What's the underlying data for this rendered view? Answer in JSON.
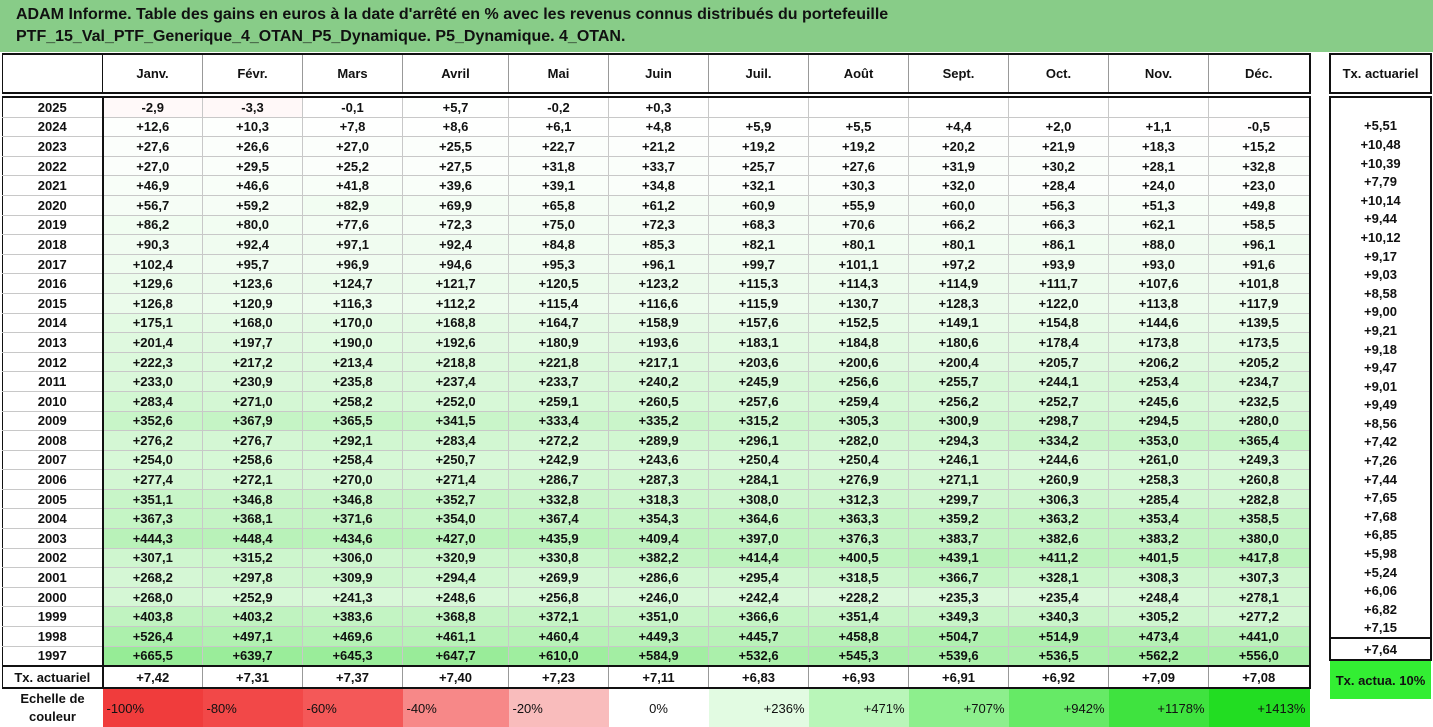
{
  "title": {
    "line1": "ADAM Informe. Table des gains en euros à la date d'arrêté en % avec les revenus connus distribués du portefeuille",
    "line2": "PTF_15_Val_PTF_Generique_4_OTAN_P5_Dynamique. P5_Dynamique. 4_OTAN."
  },
  "months": [
    "Janv.",
    "Févr.",
    "Mars",
    "Avril",
    "Mai",
    "Juin",
    "Juil.",
    "Août",
    "Sept.",
    "Oct.",
    "Nov.",
    "Déc."
  ],
  "side_header": "Tx. actuariel",
  "rows": [
    {
      "year": "2025",
      "values": [
        "-2,9",
        "-3,3",
        "-0,1",
        "+5,7",
        "-0,2",
        "+0,3",
        "",
        "",
        "",
        "",
        "",
        ""
      ],
      "rate": ""
    },
    {
      "year": "2024",
      "values": [
        "+12,6",
        "+10,3",
        "+7,8",
        "+8,6",
        "+6,1",
        "+4,8",
        "+5,9",
        "+5,5",
        "+4,4",
        "+2,0",
        "+1,1",
        "-0,5"
      ],
      "rate": "+5,51"
    },
    {
      "year": "2023",
      "values": [
        "+27,6",
        "+26,6",
        "+27,0",
        "+25,5",
        "+22,7",
        "+21,2",
        "+19,2",
        "+19,2",
        "+20,2",
        "+21,9",
        "+18,3",
        "+15,2"
      ],
      "rate": "+10,48"
    },
    {
      "year": "2022",
      "values": [
        "+27,0",
        "+29,5",
        "+25,2",
        "+27,5",
        "+31,8",
        "+33,7",
        "+25,7",
        "+27,6",
        "+31,9",
        "+30,2",
        "+28,1",
        "+32,8"
      ],
      "rate": "+10,39"
    },
    {
      "year": "2021",
      "values": [
        "+46,9",
        "+46,6",
        "+41,8",
        "+39,6",
        "+39,1",
        "+34,8",
        "+32,1",
        "+30,3",
        "+32,0",
        "+28,4",
        "+24,0",
        "+23,0"
      ],
      "rate": "+7,79"
    },
    {
      "year": "2020",
      "values": [
        "+56,7",
        "+59,2",
        "+82,9",
        "+69,9",
        "+65,8",
        "+61,2",
        "+60,9",
        "+55,9",
        "+60,0",
        "+56,3",
        "+51,3",
        "+49,8"
      ],
      "rate": "+10,14"
    },
    {
      "year": "2019",
      "values": [
        "+86,2",
        "+80,0",
        "+77,6",
        "+72,3",
        "+75,0",
        "+72,3",
        "+68,3",
        "+70,6",
        "+66,2",
        "+66,3",
        "+62,1",
        "+58,5"
      ],
      "rate": "+9,44"
    },
    {
      "year": "2018",
      "values": [
        "+90,3",
        "+92,4",
        "+97,1",
        "+92,4",
        "+84,8",
        "+85,3",
        "+82,1",
        "+80,1",
        "+80,1",
        "+86,1",
        "+88,0",
        "+96,1"
      ],
      "rate": "+10,12"
    },
    {
      "year": "2017",
      "values": [
        "+102,4",
        "+95,7",
        "+96,9",
        "+94,6",
        "+95,3",
        "+96,1",
        "+99,7",
        "+101,1",
        "+97,2",
        "+93,9",
        "+93,0",
        "+91,6"
      ],
      "rate": "+9,17"
    },
    {
      "year": "2016",
      "values": [
        "+129,6",
        "+123,6",
        "+124,7",
        "+121,7",
        "+120,5",
        "+123,2",
        "+115,3",
        "+114,3",
        "+114,9",
        "+111,7",
        "+107,6",
        "+101,8"
      ],
      "rate": "+9,03"
    },
    {
      "year": "2015",
      "values": [
        "+126,8",
        "+120,9",
        "+116,3",
        "+112,2",
        "+115,4",
        "+116,6",
        "+115,9",
        "+130,7",
        "+128,3",
        "+122,0",
        "+113,8",
        "+117,9"
      ],
      "rate": "+8,58"
    },
    {
      "year": "2014",
      "values": [
        "+175,1",
        "+168,0",
        "+170,0",
        "+168,8",
        "+164,7",
        "+158,9",
        "+157,6",
        "+152,5",
        "+149,1",
        "+154,8",
        "+144,6",
        "+139,5"
      ],
      "rate": "+9,00"
    },
    {
      "year": "2013",
      "values": [
        "+201,4",
        "+197,7",
        "+190,0",
        "+192,6",
        "+180,9",
        "+193,6",
        "+183,1",
        "+184,8",
        "+180,6",
        "+178,4",
        "+173,8",
        "+173,5"
      ],
      "rate": "+9,21"
    },
    {
      "year": "2012",
      "values": [
        "+222,3",
        "+217,2",
        "+213,4",
        "+218,8",
        "+221,8",
        "+217,1",
        "+203,6",
        "+200,6",
        "+200,4",
        "+205,7",
        "+206,2",
        "+205,2"
      ],
      "rate": "+9,18"
    },
    {
      "year": "2011",
      "values": [
        "+233,0",
        "+230,9",
        "+235,8",
        "+237,4",
        "+233,7",
        "+240,2",
        "+245,9",
        "+256,6",
        "+255,7",
        "+244,1",
        "+253,4",
        "+234,7"
      ],
      "rate": "+9,47"
    },
    {
      "year": "2010",
      "values": [
        "+283,4",
        "+271,0",
        "+258,2",
        "+252,0",
        "+259,1",
        "+260,5",
        "+257,6",
        "+259,4",
        "+256,2",
        "+252,7",
        "+245,6",
        "+232,5"
      ],
      "rate": "+9,01"
    },
    {
      "year": "2009",
      "values": [
        "+352,6",
        "+367,9",
        "+365,5",
        "+341,5",
        "+333,4",
        "+335,2",
        "+315,2",
        "+305,3",
        "+300,9",
        "+298,7",
        "+294,5",
        "+280,0"
      ],
      "rate": "+9,49"
    },
    {
      "year": "2008",
      "values": [
        "+276,2",
        "+276,7",
        "+292,1",
        "+283,4",
        "+272,2",
        "+289,9",
        "+296,1",
        "+282,0",
        "+294,3",
        "+334,2",
        "+353,0",
        "+365,4"
      ],
      "rate": "+8,56"
    },
    {
      "year": "2007",
      "values": [
        "+254,0",
        "+258,6",
        "+258,4",
        "+250,7",
        "+242,9",
        "+243,6",
        "+250,4",
        "+250,4",
        "+246,1",
        "+244,6",
        "+261,0",
        "+249,3"
      ],
      "rate": "+7,42"
    },
    {
      "year": "2006",
      "values": [
        "+277,4",
        "+272,1",
        "+270,0",
        "+271,4",
        "+286,7",
        "+287,3",
        "+284,1",
        "+276,9",
        "+271,1",
        "+260,9",
        "+258,3",
        "+260,8"
      ],
      "rate": "+7,26"
    },
    {
      "year": "2005",
      "values": [
        "+351,1",
        "+346,8",
        "+346,8",
        "+352,7",
        "+332,8",
        "+318,3",
        "+308,0",
        "+312,3",
        "+299,7",
        "+306,3",
        "+285,4",
        "+282,8"
      ],
      "rate": "+7,44"
    },
    {
      "year": "2004",
      "values": [
        "+367,3",
        "+368,1",
        "+371,6",
        "+354,0",
        "+367,4",
        "+354,3",
        "+364,6",
        "+363,3",
        "+359,2",
        "+363,2",
        "+353,4",
        "+358,5"
      ],
      "rate": "+7,65"
    },
    {
      "year": "2003",
      "values": [
        "+444,3",
        "+448,4",
        "+434,6",
        "+427,0",
        "+435,9",
        "+409,4",
        "+397,0",
        "+376,3",
        "+383,7",
        "+382,6",
        "+383,2",
        "+380,0"
      ],
      "rate": "+7,68"
    },
    {
      "year": "2002",
      "values": [
        "+307,1",
        "+315,2",
        "+306,0",
        "+320,9",
        "+330,8",
        "+382,2",
        "+414,4",
        "+400,5",
        "+439,1",
        "+411,2",
        "+401,5",
        "+417,8"
      ],
      "rate": "+6,85"
    },
    {
      "year": "2001",
      "values": [
        "+268,2",
        "+297,8",
        "+309,9",
        "+294,4",
        "+269,9",
        "+286,6",
        "+295,4",
        "+318,5",
        "+366,7",
        "+328,1",
        "+308,3",
        "+307,3"
      ],
      "rate": "+5,98"
    },
    {
      "year": "2000",
      "values": [
        "+268,0",
        "+252,9",
        "+241,3",
        "+248,6",
        "+256,8",
        "+246,0",
        "+242,4",
        "+228,2",
        "+235,3",
        "+235,4",
        "+248,4",
        "+278,1"
      ],
      "rate": "+5,24"
    },
    {
      "year": "1999",
      "values": [
        "+403,8",
        "+403,2",
        "+383,6",
        "+368,8",
        "+372,1",
        "+351,0",
        "+366,6",
        "+351,4",
        "+349,3",
        "+340,3",
        "+305,2",
        "+277,2"
      ],
      "rate": "+6,06"
    },
    {
      "year": "1998",
      "values": [
        "+526,4",
        "+497,1",
        "+469,6",
        "+461,1",
        "+460,4",
        "+449,3",
        "+445,7",
        "+458,8",
        "+504,7",
        "+514,9",
        "+473,4",
        "+441,0"
      ],
      "rate": "+6,82"
    },
    {
      "year": "1997",
      "values": [
        "+665,5",
        "+639,7",
        "+645,3",
        "+647,7",
        "+610,0",
        "+584,9",
        "+532,6",
        "+545,3",
        "+539,6",
        "+536,5",
        "+562,2",
        "+556,0"
      ],
      "rate": "+7,15"
    }
  ],
  "tx_row": {
    "label": "Tx. actuariel",
    "values": [
      "+7,42",
      "+7,31",
      "+7,37",
      "+7,40",
      "+7,23",
      "+7,11",
      "+6,83",
      "+6,93",
      "+6,91",
      "+6,92",
      "+7,09",
      "+7,08"
    ],
    "rate": "+7,64"
  },
  "scale": {
    "label": "Echelle de couleur",
    "items": [
      {
        "text": "-100%",
        "color": "#f03c3c"
      },
      {
        "text": "-80%",
        "color": "#f24848"
      },
      {
        "text": "-60%",
        "color": "#f45858"
      },
      {
        "text": "-40%",
        "color": "#f78888"
      },
      {
        "text": "-20%",
        "color": "#f9bcbc"
      },
      {
        "text": "0%",
        "color": "#ffffff"
      },
      {
        "text": "+236%",
        "color": "#e2fbe2"
      },
      {
        "text": "+471%",
        "color": "#b9f6b9"
      },
      {
        "text": "+707%",
        "color": "#8def8d"
      },
      {
        "text": "+942%",
        "color": "#66ea66"
      },
      {
        "text": "+1178%",
        "color": "#3fe33f"
      },
      {
        "text": "+1413%",
        "color": "#22dd22"
      }
    ],
    "side_label": "Tx. actua. 10%",
    "side_color": "#33ee33"
  }
}
